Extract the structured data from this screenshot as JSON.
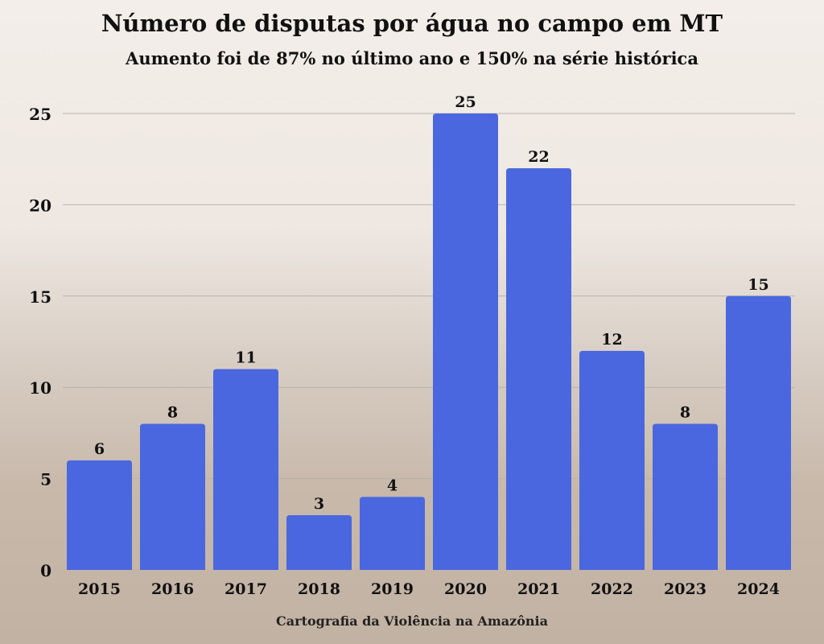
{
  "chart_data": {
    "type": "bar",
    "title": "Número de disputas por água no campo em MT",
    "subtitle": "Aumento foi de 87% no último ano e 150% na série histórica",
    "categories": [
      "2015",
      "2016",
      "2017",
      "2018",
      "2019",
      "2020",
      "2021",
      "2022",
      "2023",
      "2024"
    ],
    "values": [
      6,
      8,
      11,
      3,
      4,
      25,
      22,
      12,
      8,
      15
    ],
    "xlabel": "",
    "ylabel": "",
    "ylim": [
      0,
      25
    ],
    "yticks": [
      0,
      5,
      10,
      15,
      20,
      25
    ],
    "grid": true,
    "bar_color": "#4a67df",
    "source": "Cartografia da Violência na Amazônia"
  }
}
